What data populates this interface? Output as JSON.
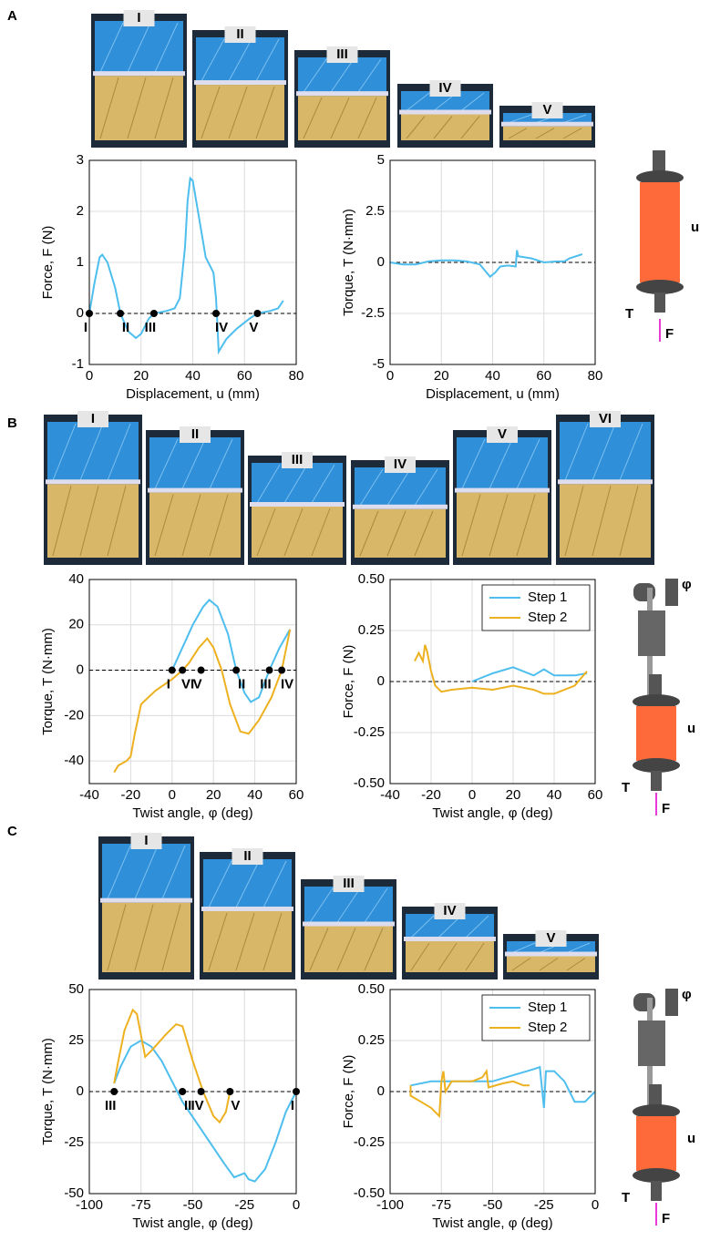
{
  "panels": [
    {
      "letter": "A",
      "photo_labels": [
        "I",
        "II",
        "III",
        "IV",
        "V"
      ],
      "icon_labels": [
        "u",
        "T",
        "F"
      ]
    },
    {
      "letter": "B",
      "photo_labels": [
        "I",
        "II",
        "III",
        "IV",
        "V",
        "VI"
      ],
      "icon_labels": [
        "φ",
        "u",
        "T",
        "F"
      ]
    },
    {
      "letter": "C",
      "photo_labels": [
        "I",
        "II",
        "III",
        "IV",
        "V"
      ],
      "icon_labels": [
        "φ",
        "u",
        "T",
        "F"
      ]
    }
  ],
  "chart_data": [
    {
      "type": "line",
      "xlabel": "Displacement, u (mm)",
      "ylabel": "Force, F (N)",
      "xlim": [
        0,
        80
      ],
      "xticks": [
        0,
        20,
        40,
        60,
        80
      ],
      "ylim": [
        -1,
        3
      ],
      "yticks": [
        -1,
        0,
        1,
        2,
        3
      ],
      "grid": true,
      "series": [
        {
          "color": "#4dbeee",
          "x": [
            0,
            2,
            4,
            5,
            7,
            10,
            12,
            15,
            18,
            20,
            23,
            25,
            30,
            33,
            35,
            37,
            38,
            39,
            40,
            42,
            45,
            48,
            49,
            49.5,
            50,
            53,
            57,
            62,
            65,
            70,
            73,
            75
          ],
          "values": [
            0,
            0.6,
            1.1,
            1.15,
            1,
            0.5,
            0,
            -0.35,
            -0.48,
            -0.4,
            -0.1,
            0,
            0.05,
            0.1,
            0.3,
            1.3,
            2.2,
            2.65,
            2.6,
            2,
            1.1,
            0.8,
            0.3,
            -0.2,
            -0.75,
            -0.5,
            -0.3,
            -0.1,
            0,
            0.05,
            0.1,
            0.25
          ]
        }
      ],
      "annotations": [
        {
          "text": "I",
          "x": 0,
          "y": 0
        },
        {
          "text": "II",
          "x": 12,
          "y": 0
        },
        {
          "text": "III",
          "x": 25,
          "y": 0
        },
        {
          "text": "IV",
          "x": 49,
          "y": 0
        },
        {
          "text": "V",
          "x": 65,
          "y": 0
        }
      ]
    },
    {
      "type": "line",
      "xlabel": "Displacement, u (mm)",
      "ylabel": "Torque, T (N·mm)",
      "xlim": [
        0,
        80
      ],
      "xticks": [
        0,
        20,
        40,
        60,
        80
      ],
      "ylim": [
        -5,
        5
      ],
      "yticks": [
        -5,
        -2.5,
        0,
        2.5,
        5
      ],
      "grid": true,
      "series": [
        {
          "color": "#4dbeee",
          "x": [
            0,
            5,
            10,
            15,
            20,
            25,
            30,
            35,
            37,
            39,
            41,
            43,
            46,
            49,
            49.5,
            50,
            55,
            60,
            65,
            68,
            70,
            75
          ],
          "values": [
            0,
            -0.1,
            -0.1,
            0.05,
            0.1,
            0.1,
            0.05,
            -0.1,
            -0.4,
            -0.7,
            -0.5,
            -0.2,
            -0.15,
            -0.2,
            0.6,
            0.3,
            0.2,
            0,
            0.05,
            0.05,
            0.2,
            0.4
          ]
        }
      ]
    },
    {
      "type": "line",
      "xlabel": "Twist angle, φ (deg)",
      "ylabel": "Torque, T (N·mm)",
      "xlim": [
        -40,
        60
      ],
      "xticks": [
        -40,
        -20,
        0,
        20,
        40,
        60
      ],
      "ylim": [
        -50,
        40
      ],
      "yticks": [
        -40,
        -20,
        0,
        20,
        40
      ],
      "grid": true,
      "series": [
        {
          "color": "#4dbeee",
          "x": [
            0,
            5,
            10,
            15,
            18,
            22,
            27,
            31,
            35,
            38,
            42,
            47,
            52,
            57
          ],
          "values": [
            0,
            10,
            20,
            28,
            31,
            28,
            16,
            0,
            -10,
            -14,
            -12,
            0,
            10,
            18
          ]
        },
        {
          "color": "#edb120",
          "x": [
            57,
            53,
            48,
            42,
            37,
            33,
            28,
            24,
            20,
            17,
            13,
            8,
            5,
            0,
            -8,
            -15,
            -18,
            -20,
            -22,
            -24,
            -26,
            -28
          ],
          "values": [
            18,
            0,
            -12,
            -22,
            -28,
            -27,
            -15,
            0,
            10,
            14,
            10,
            3,
            0,
            -4,
            -9,
            -15,
            -28,
            -38,
            -40,
            -41,
            -42,
            -45
          ]
        }
      ],
      "annotations": [
        {
          "text": "I",
          "x": 0,
          "y": 0
        },
        {
          "text": "VI",
          "x": 5,
          "y": 0
        },
        {
          "text": "V",
          "x": 14,
          "y": 0
        },
        {
          "text": "II",
          "x": 31,
          "y": 0
        },
        {
          "text": "III",
          "x": 47,
          "y": 0
        },
        {
          "text": "IV",
          "x": 53,
          "y": 0
        }
      ]
    },
    {
      "type": "line",
      "xlabel": "Twist angle, φ (deg)",
      "ylabel": "Force, F (N)",
      "xlim": [
        -40,
        60
      ],
      "xticks": [
        -40,
        -20,
        0,
        20,
        40,
        60
      ],
      "ylim": [
        -0.5,
        0.5
      ],
      "yticks": [
        {
          "value": -0.5,
          "label": "-0.50"
        },
        -0.25,
        0,
        0.25,
        {
          "value": 0.5,
          "label": "0.50"
        }
      ],
      "grid": true,
      "legend": "top-right",
      "series": [
        {
          "name": "Step 1",
          "color": "#4dbeee",
          "x": [
            0,
            10,
            20,
            25,
            30,
            35,
            40,
            50,
            56
          ],
          "values": [
            0,
            0.04,
            0.07,
            0.05,
            0.03,
            0.06,
            0.03,
            0.03,
            0.04
          ]
        },
        {
          "name": "Step 2",
          "color": "#edb120",
          "x": [
            56,
            50,
            40,
            35,
            30,
            20,
            10,
            0,
            -10,
            -15,
            -18,
            -20,
            -22,
            -23,
            -24,
            -26,
            -28
          ],
          "values": [
            0.05,
            -0.02,
            -0.06,
            -0.06,
            -0.04,
            -0.02,
            -0.04,
            -0.03,
            -0.04,
            -0.05,
            -0.02,
            0.05,
            0.15,
            0.18,
            0.1,
            0.14,
            0.1
          ]
        }
      ]
    },
    {
      "type": "line",
      "xlabel": "Twist angle, φ (deg)",
      "ylabel": "Torque, T (N·mm)",
      "xlim": [
        -100,
        0
      ],
      "xticks": [
        -100,
        -75,
        -50,
        -25,
        0
      ],
      "ylim": [
        -50,
        50
      ],
      "yticks": [
        -50,
        -25,
        0,
        25,
        50
      ],
      "grid": true,
      "series": [
        {
          "color": "#4dbeee",
          "x": [
            0,
            -5,
            -10,
            -15,
            -20,
            -23,
            -25,
            -30,
            -35,
            -45,
            -55,
            -60,
            -65,
            -70,
            -75,
            -80,
            -85,
            -88
          ],
          "values": [
            0,
            -10,
            -25,
            -38,
            -44,
            -43,
            -40,
            -42,
            -35,
            -20,
            -5,
            5,
            15,
            22,
            25,
            22,
            12,
            4
          ]
        },
        {
          "color": "#edb120",
          "x": [
            -88,
            -86,
            -83,
            -79,
            -77,
            -73,
            -70,
            -63,
            -58,
            -55,
            -50,
            -45,
            -40,
            -37,
            -34,
            -32
          ],
          "values": [
            4,
            15,
            30,
            40,
            38,
            17,
            20,
            28,
            33,
            32,
            15,
            0,
            -12,
            -15,
            -10,
            0
          ]
        }
      ],
      "annotations": [
        {
          "text": "III",
          "x": -88,
          "y": 0
        },
        {
          "text": "II",
          "x": -55,
          "y": 0
        },
        {
          "text": "IV",
          "x": -46,
          "y": 0
        },
        {
          "text": "V",
          "x": -32,
          "y": 0
        },
        {
          "text": "I",
          "x": 0,
          "y": 0
        }
      ]
    },
    {
      "type": "line",
      "xlabel": "Twist angle, φ (deg)",
      "ylabel": "Force, F (N)",
      "xlim": [
        -100,
        0
      ],
      "xticks": [
        -100,
        -75,
        -50,
        -25,
        0
      ],
      "ylim": [
        -0.5,
        0.5
      ],
      "yticks": [
        {
          "value": -0.5,
          "label": "-0.50"
        },
        -0.25,
        0,
        0.25,
        {
          "value": 0.5,
          "label": "0.50"
        }
      ],
      "grid": true,
      "legend": "top-right",
      "series": [
        {
          "name": "Step 1",
          "color": "#4dbeee",
          "x": [
            -90,
            -80,
            -70,
            -60,
            -50,
            -40,
            -30,
            -27,
            -25,
            -24,
            -20,
            -15,
            -10,
            -5,
            0
          ],
          "values": [
            0.03,
            0.05,
            0.05,
            0.05,
            0.05,
            0.08,
            0.11,
            0.12,
            -0.08,
            0.1,
            0.1,
            0.05,
            -0.05,
            -0.05,
            0
          ]
        },
        {
          "name": "Step 2",
          "color": "#edb120",
          "x": [
            -90,
            -90,
            -85,
            -80,
            -76,
            -75,
            -74,
            -73,
            -70,
            -60,
            -55,
            -53,
            -52,
            -45,
            -40,
            -35,
            -32
          ],
          "values": [
            0.03,
            -0.02,
            -0.05,
            -0.08,
            -0.12,
            0.05,
            0.1,
            0,
            0.05,
            0.05,
            0.07,
            0.1,
            0.02,
            0.04,
            0.05,
            0.03,
            0.03
          ]
        }
      ]
    }
  ]
}
